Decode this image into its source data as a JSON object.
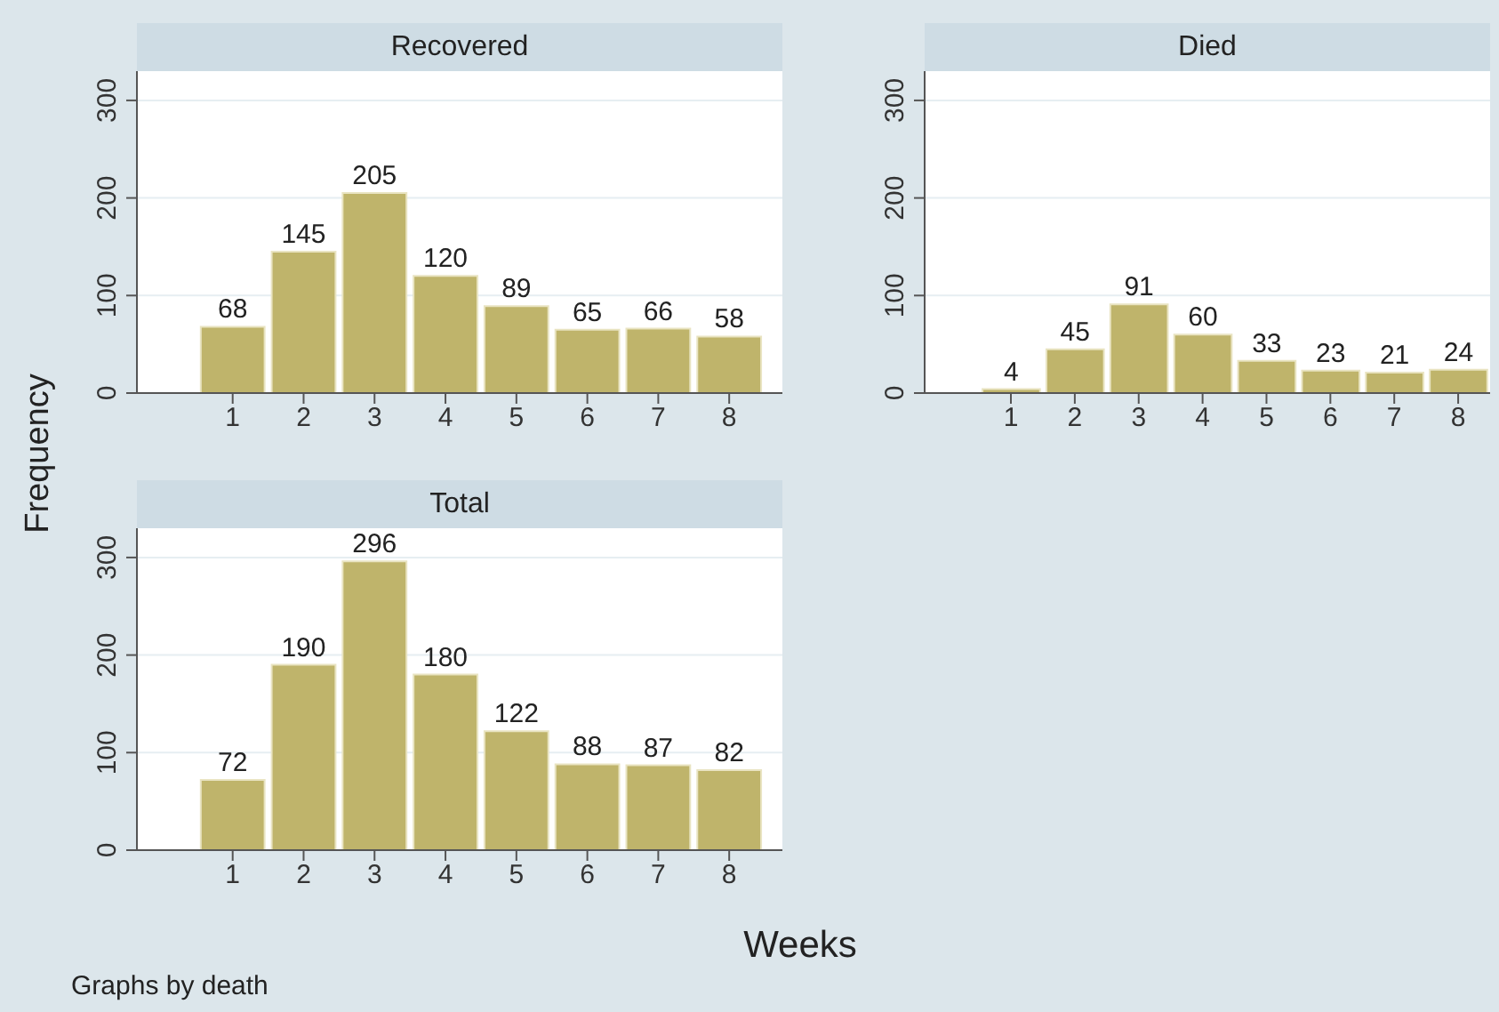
{
  "chart_data": [
    {
      "type": "histogram",
      "title": "Recovered",
      "ylabel": "Frequency",
      "bins": [
        0.5,
        1.5,
        2.5,
        3.5,
        4.5,
        5.5,
        6.5,
        7.5,
        8.5
      ],
      "values": [
        68,
        145,
        205,
        120,
        89,
        65,
        66,
        58
      ],
      "color": "#bfb46b",
      "xlim": [
        -0.35,
        8.75
      ],
      "xticks": [
        1,
        2,
        3,
        4,
        5,
        6,
        7,
        8
      ],
      "ylim": [
        0,
        330
      ],
      "yticks": [
        0,
        100,
        200,
        300
      ],
      "grid": "y",
      "data_labels": true
    },
    {
      "type": "histogram",
      "title": "Died",
      "bins": [
        0.5,
        1.5,
        2.5,
        3.5,
        4.5,
        5.5,
        6.5,
        7.5,
        8.5
      ],
      "values": [
        4,
        45,
        91,
        60,
        33,
        23,
        21,
        24
      ],
      "color": "#bfb46b",
      "xlim": [
        -0.35,
        8.5
      ],
      "xticks": [
        1,
        2,
        3,
        4,
        5,
        6,
        7,
        8
      ],
      "ylim": [
        0,
        330
      ],
      "yticks": [
        0,
        100,
        200,
        300
      ],
      "grid": "y",
      "data_labels": true
    },
    {
      "type": "histogram",
      "title": "Total",
      "xlabel": "Weeks",
      "annotations": [
        "Graphs by death"
      ],
      "bins": [
        0.5,
        1.5,
        2.5,
        3.5,
        4.5,
        5.5,
        6.5,
        7.5,
        8.5
      ],
      "values": [
        72,
        190,
        296,
        180,
        122,
        88,
        87,
        82
      ],
      "color": "#bfb46b",
      "xlim": [
        -0.35,
        8.75
      ],
      "xticks": [
        1,
        2,
        3,
        4,
        5,
        6,
        7,
        8
      ],
      "ylim": [
        0,
        330
      ],
      "yticks": [
        0,
        100,
        200,
        300
      ],
      "grid": "y",
      "data_labels": true
    }
  ]
}
